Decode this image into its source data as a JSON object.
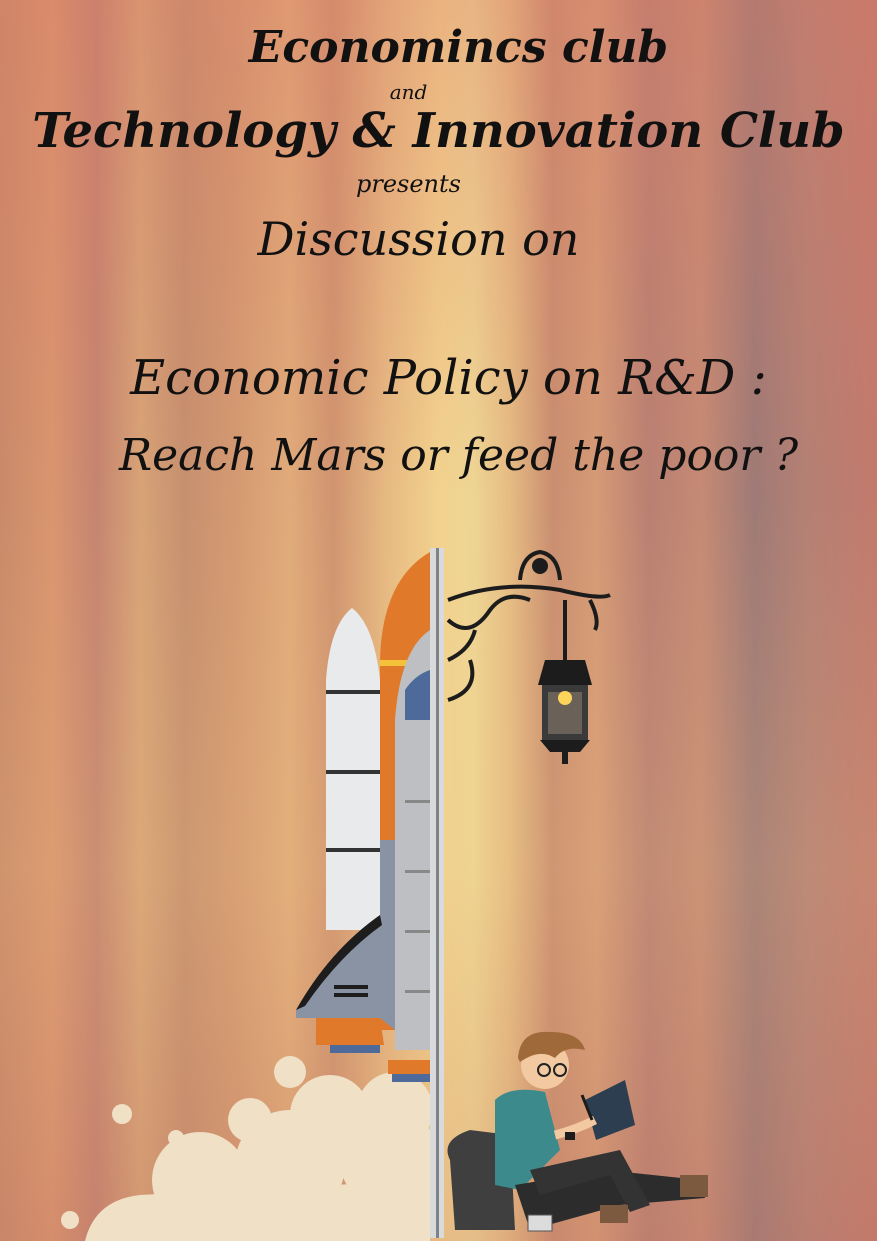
{
  "poster": {
    "host_line_1": "Economincs club",
    "connector": "and",
    "host_line_2": "Technology & Innovation Club",
    "presents": "presents",
    "event_type": "Discussion on",
    "topic_line_1": "Economic Policy on R&D :",
    "topic_line_2": "Reach Mars or feed the poor ?"
  },
  "colors": {
    "rocket_orange": "#e07a2a",
    "rocket_white": "#e9eaec",
    "rocket_grey": "#8a93a4",
    "smoke": "#efe0c6",
    "lamp_iron": "#1c1c1c",
    "shirt_teal": "#3d8a8c"
  },
  "illustration": {
    "left_half": "space-shuttle-icon",
    "right_half": "student-reading-under-street-lamp-icon"
  }
}
